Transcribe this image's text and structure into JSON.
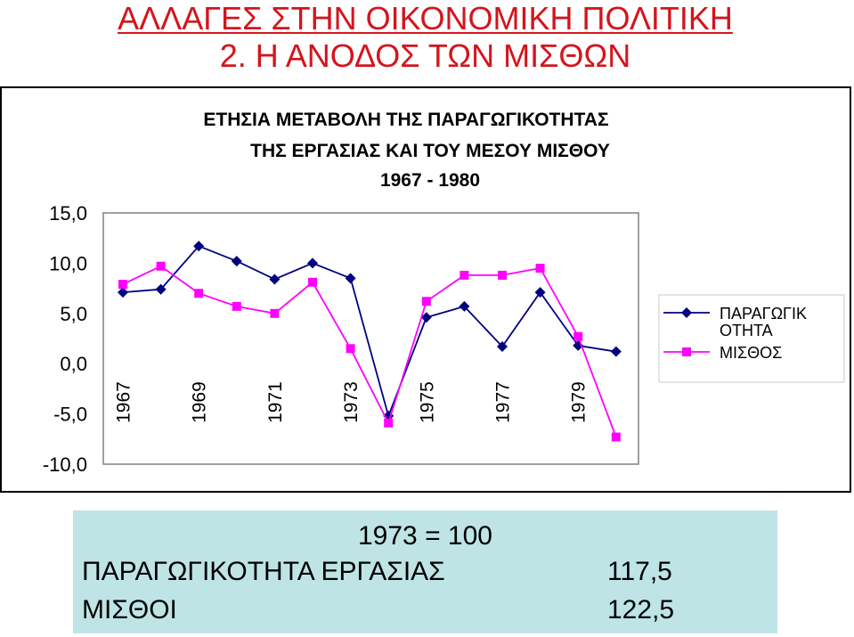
{
  "slide": {
    "title_line1": "ΑΛΛΑΓΕΣ ΣΤΗΝ ΟΙΚΟΝΟΜΙΚΗ ΠΟΛΙΤΙΚΗ",
    "title_line2": "2. Η ΑΝΟΔΟΣ ΤΩΝ ΜΙΣΘΩΝ",
    "title_color": "#d4141c"
  },
  "chart_data": {
    "type": "line",
    "title_lines": [
      "ΕΤΗΣΙΑ ΜΕΤΑΒΟΛΗ ΤΗΣ ΠΑΡΑΓΩΓΙΚΟΤΗΤΑΣ",
      "ΤΗΣ ΕΡΓΑΣΙΑΣ ΚΑΙ ΤΟΥ ΜΕΣΟΥ ΜΙΣΘΟΥ",
      "1967 - 1980"
    ],
    "x": [
      1967,
      1968,
      1969,
      1970,
      1971,
      1972,
      1973,
      1974,
      1975,
      1976,
      1977,
      1978,
      1979,
      1980
    ],
    "x_tick_labels": [
      "1967",
      "1969",
      "1971",
      "1973",
      "1975",
      "1977",
      "1979"
    ],
    "y_tick_labels": [
      "15,0",
      "10,0",
      "5,0",
      "0,0",
      "-5,0",
      "-10,0"
    ],
    "ylim": [
      -10,
      15
    ],
    "y_tick_values": [
      15,
      10,
      5,
      0,
      -5,
      -10
    ],
    "legend_position": "right",
    "grid": false,
    "series": [
      {
        "name": "ΠΑΡΑΓΩΓΙΚ ΟΤΗΤΑ",
        "legend_lines": [
          "ΠΑΡΑΓΩΓΙΚ",
          "ΟΤΗΤΑ"
        ],
        "color": "#000080",
        "marker": "diamond",
        "values": [
          7.1,
          7.4,
          11.7,
          10.2,
          8.4,
          10.0,
          8.5,
          -5.2,
          4.6,
          5.7,
          1.7,
          7.1,
          1.8,
          1.2
        ]
      },
      {
        "name": "ΜΙΣΘΟΣ",
        "legend_lines": [
          "ΜΙΣΘΟΣ"
        ],
        "color": "#ff00ff",
        "marker": "square",
        "values": [
          7.9,
          9.7,
          7.0,
          5.7,
          5.0,
          8.1,
          1.5,
          -5.9,
          6.2,
          8.8,
          8.8,
          9.5,
          2.7,
          -7.3
        ]
      }
    ]
  },
  "info_box": {
    "heading": "1973 = 100",
    "productivity_label": "ΠΑΡΑΓΩΓΙΚΟΤΗΤΑ ΕΡΓΑΣΙΑΣ",
    "productivity_value": "117,5",
    "wages_label": "ΜΙΣΘΟΙ",
    "wages_value": "122,5",
    "background": "#bfe4e6"
  }
}
